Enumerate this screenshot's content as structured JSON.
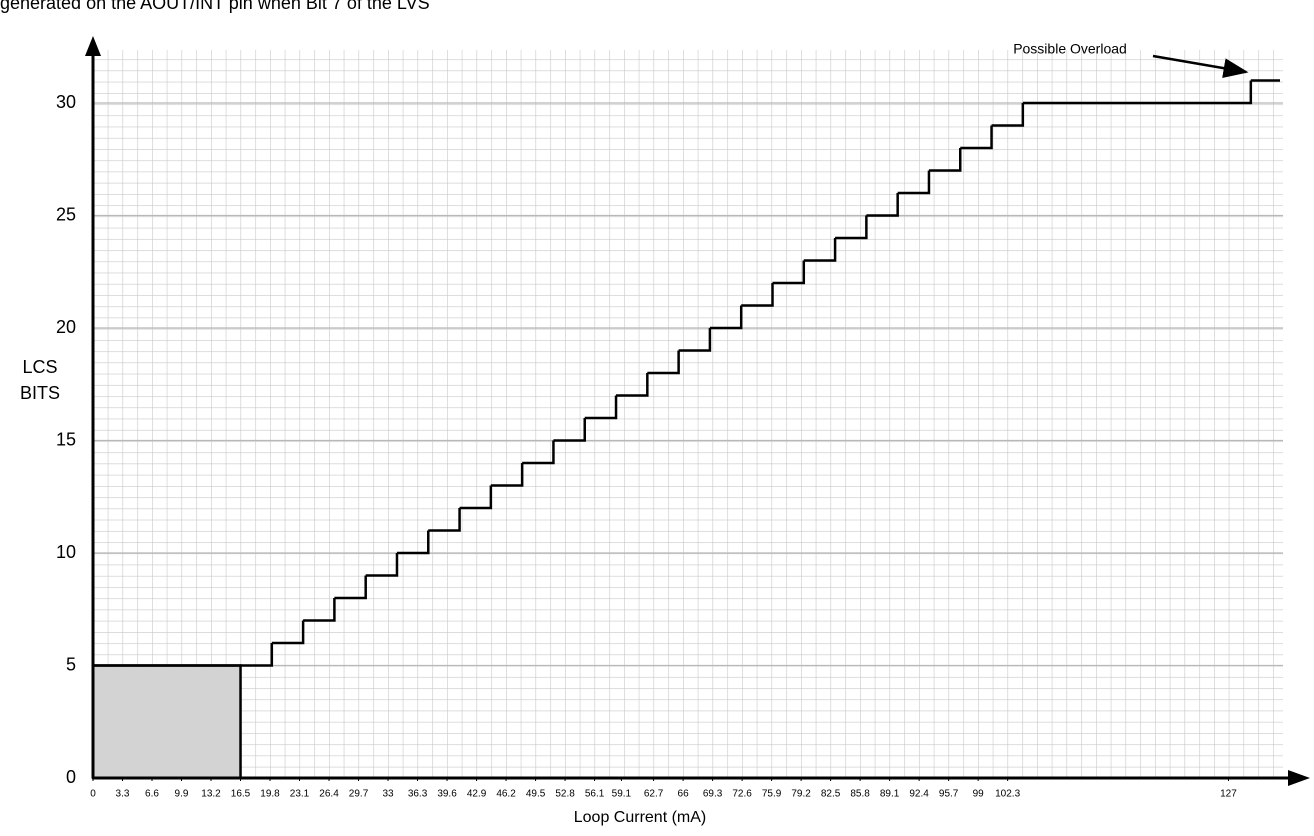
{
  "chart_data": {
    "type": "step",
    "header_text": "generated on the AOUT/INT pin when Bit 7 of the LVS",
    "xlabel": "Loop Current (mA)",
    "ylabel": [
      "LCS",
      "BITS"
    ],
    "annotation": "Possible Overload",
    "xlim": [
      0,
      135
    ],
    "ylim": [
      0,
      32.8
    ],
    "xticks": [
      0,
      3.3,
      6.6,
      9.9,
      13.2,
      16.5,
      19.8,
      23.1,
      26.4,
      29.7,
      33,
      36.3,
      39.6,
      42.9,
      46.2,
      49.5,
      52.8,
      56.1,
      59.1,
      62.7,
      66,
      69.3,
      72.6,
      75.9,
      79.2,
      82.5,
      85.8,
      89.1,
      92.4,
      95.7,
      99,
      102.3,
      127
    ],
    "yticks": [
      0,
      5,
      10,
      15,
      20,
      25,
      30
    ],
    "grid": true,
    "shaded_region": {
      "x": [
        0,
        16.5
      ],
      "y": [
        0,
        5
      ],
      "color": "#d3d3d3"
    },
    "x": [
      0,
      20,
      23.5,
      27,
      30.5,
      34,
      37.5,
      41,
      44.5,
      48,
      51.5,
      55,
      58.5,
      62,
      65.5,
      69,
      72.5,
      76,
      79.5,
      83,
      86.5,
      90,
      93.5,
      97,
      100.5,
      104,
      129.5
    ],
    "values": [
      5,
      6,
      7,
      8,
      9,
      10,
      11,
      12,
      13,
      14,
      15,
      16,
      17,
      18,
      19,
      20,
      21,
      22,
      23,
      24,
      25,
      26,
      27,
      28,
      29,
      30,
      31
    ],
    "color": "#000000"
  }
}
